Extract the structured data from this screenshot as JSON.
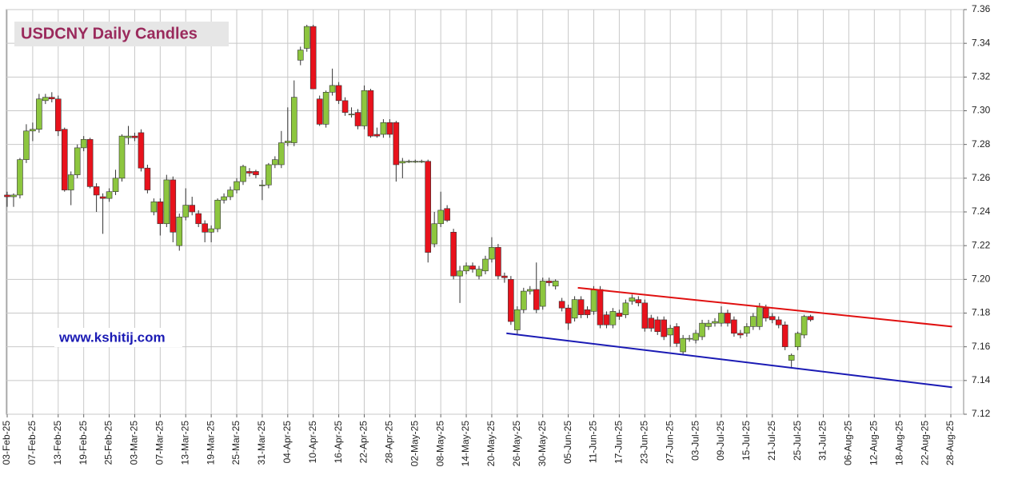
{
  "chart_data": {
    "type": "candlestick",
    "title": "USDCNY Daily Candles",
    "annotation": "www.kshitij.com",
    "categories": [
      "03-Feb-25",
      null,
      null,
      null,
      "07-Feb-25",
      null,
      null,
      null,
      "13-Feb-25",
      null,
      null,
      null,
      "19-Feb-25",
      null,
      null,
      null,
      "25-Feb-25",
      null,
      null,
      null,
      "03-Mar-25",
      null,
      null,
      null,
      "07-Mar-25",
      null,
      null,
      null,
      "13-Mar-25",
      null,
      null,
      null,
      "19-Mar-25",
      null,
      null,
      null,
      "25-Mar-25",
      null,
      null,
      null,
      "31-Mar-25",
      null,
      null,
      null,
      "04-Apr-25",
      null,
      null,
      null,
      "10-Apr-25",
      null,
      null,
      null,
      "16-Apr-25",
      null,
      null,
      null,
      "22-Apr-25",
      null,
      null,
      null,
      "28-Apr-25",
      null,
      null,
      null,
      "02-May-25",
      null,
      null,
      null,
      "08-May-25",
      null,
      null,
      null,
      "14-May-25",
      null,
      null,
      null,
      "20-May-25",
      null,
      null,
      null,
      "26-May-25",
      null,
      null,
      null,
      "30-May-25",
      null,
      null,
      null,
      "05-Jun-25",
      null,
      null,
      null,
      "11-Jun-25",
      null,
      null,
      null,
      "17-Jun-25",
      null,
      null,
      null,
      "23-Jun-25",
      null,
      null,
      null,
      "27-Jun-25",
      null,
      null,
      null,
      "03-Jul-25",
      null,
      null,
      null,
      "09-Jul-25",
      null,
      null,
      null,
      "15-Jul-25",
      null,
      null,
      null,
      "21-Jul-25",
      null,
      null,
      null,
      "25-Jul-25",
      null,
      null,
      null,
      "31-Jul-25",
      null,
      null,
      null,
      "06-Aug-25",
      null,
      null,
      null,
      "12-Aug-25",
      null,
      null,
      null,
      "18-Aug-25",
      null,
      null,
      null,
      "22-Aug-25",
      null,
      null,
      null,
      "28-Aug-25"
    ],
    "open": [
      7.25,
      7.249,
      7.25,
      7.271,
      7.288,
      7.289,
      7.306,
      7.308,
      7.307,
      7.289,
      7.253,
      7.262,
      7.278,
      7.283,
      7.255,
      7.249,
      7.248,
      7.252,
      7.26,
      7.284,
      7.285,
      7.287,
      7.266,
      7.24,
      7.246,
      7.233,
      7.259,
      7.22,
      7.237,
      7.244,
      7.239,
      7.233,
      7.228,
      7.23,
      7.247,
      7.249,
      7.253,
      7.258,
      7.264,
      7.264,
      7.256,
      7.256,
      7.268,
      7.268,
      7.281,
      7.281,
      7.33,
      7.337,
      7.35,
      7.307,
      7.292,
      7.311,
      7.315,
      7.306,
      7.298,
      7.299,
      7.291,
      7.312,
      7.286,
      7.286,
      7.293,
      7.293,
      7.269,
      7.27,
      7.27,
      7.27,
      7.27,
      7.221,
      7.233,
      7.242,
      7.228,
      7.202,
      7.205,
      7.208,
      7.202,
      7.205,
      7.212,
      7.219,
      7.202,
      7.2,
      7.17,
      7.182,
      7.193,
      7.194,
      7.184,
      7.199,
      7.196,
      7.187,
      7.183,
      7.177,
      7.188,
      7.182,
      7.181,
      7.194,
      7.179,
      7.173,
      7.18,
      7.179,
      7.187,
      7.188,
      7.186,
      7.177,
      7.176,
      7.176,
      7.167,
      7.172,
      7.157,
      7.165,
      7.164,
      7.166,
      7.172,
      7.174,
      7.174,
      7.18,
      7.176,
      7.168,
      7.168,
      7.172,
      7.172,
      7.183,
      7.178,
      7.176,
      7.173,
      7.152,
      7.16,
      7.167,
      7.178,
      null,
      null,
      null,
      null,
      null,
      null,
      null,
      null,
      null,
      null,
      null,
      null,
      null,
      null,
      null,
      null,
      null,
      null,
      null,
      null,
      null,
      null
    ],
    "high": [
      7.252,
      7.251,
      7.272,
      7.292,
      7.293,
      7.31,
      7.31,
      7.311,
      7.309,
      7.29,
      7.264,
      7.28,
      7.285,
      7.284,
      7.257,
      7.251,
      7.254,
      7.265,
      7.286,
      7.291,
      7.287,
      7.289,
      7.268,
      7.248,
      7.248,
      7.262,
      7.261,
      7.239,
      7.254,
      7.249,
      7.241,
      7.235,
      7.232,
      7.248,
      7.251,
      7.255,
      7.26,
      7.268,
      7.266,
      7.265,
      7.259,
      7.269,
      7.273,
      7.288,
      7.302,
      7.318,
      7.338,
      7.351,
      7.351,
      7.309,
      7.312,
      7.325,
      7.317,
      7.308,
      7.302,
      7.301,
      7.315,
      7.313,
      7.29,
      7.295,
      7.295,
      7.294,
      7.272,
      7.271,
      7.271,
      7.271,
      7.271,
      7.24,
      7.252,
      7.244,
      7.23,
      7.208,
      7.21,
      7.21,
      7.208,
      7.214,
      7.225,
      7.221,
      7.204,
      7.202,
      7.184,
      7.195,
      7.196,
      7.21,
      7.201,
      7.201,
      7.2,
      7.189,
      7.185,
      7.19,
      7.19,
      7.184,
      7.196,
      7.196,
      7.181,
      7.183,
      7.182,
      7.188,
      7.191,
      7.19,
      7.188,
      7.179,
      7.178,
      7.178,
      7.173,
      7.174,
      7.167,
      7.167,
      7.17,
      7.176,
      7.176,
      7.177,
      7.184,
      7.182,
      7.178,
      7.17,
      7.174,
      7.18,
      7.186,
      7.185,
      7.18,
      7.178,
      7.175,
      7.156,
      7.169,
      7.179,
      7.179,
      null,
      null,
      null,
      null,
      null,
      null,
      null,
      null,
      null,
      null,
      null,
      null,
      null,
      null,
      null,
      null,
      null,
      null,
      null,
      null,
      null,
      null
    ],
    "low": [
      7.243,
      7.243,
      7.248,
      7.269,
      7.282,
      7.287,
      7.304,
      7.305,
      7.285,
      7.252,
      7.244,
      7.26,
      7.276,
      7.254,
      7.24,
      7.227,
      7.246,
      7.25,
      7.258,
      7.28,
      7.282,
      7.264,
      7.251,
      7.238,
      7.226,
      7.231,
      7.222,
      7.217,
      7.235,
      7.238,
      7.231,
      7.222,
      7.222,
      7.228,
      7.245,
      7.247,
      7.251,
      7.256,
      7.261,
      7.26,
      7.247,
      7.254,
      7.266,
      7.266,
      7.279,
      7.279,
      7.327,
      7.335,
      7.313,
      7.291,
      7.29,
      7.309,
      7.304,
      7.297,
      7.296,
      7.289,
      7.289,
      7.284,
      7.284,
      7.284,
      7.284,
      7.258,
      7.26,
      7.269,
      7.269,
      7.269,
      7.21,
      7.219,
      7.231,
      7.234,
      7.2,
      7.186,
      7.203,
      7.204,
      7.2,
      7.203,
      7.21,
      7.2,
      7.198,
      7.173,
      7.167,
      7.18,
      7.191,
      7.18,
      7.182,
      7.196,
      7.194,
      7.181,
      7.17,
      7.175,
      7.177,
      7.177,
      7.179,
      7.171,
      7.171,
      7.171,
      7.176,
      7.177,
      7.185,
      7.184,
      7.169,
      7.169,
      7.167,
      7.164,
      7.16,
      7.16,
      7.155,
      7.163,
      7.162,
      7.164,
      7.17,
      7.172,
      7.172,
      7.172,
      7.166,
      7.165,
      7.166,
      7.17,
      7.17,
      7.175,
      7.174,
      7.171,
      7.158,
      7.148,
      7.158,
      7.165,
      7.175,
      null,
      null,
      null,
      null,
      null,
      null,
      null,
      null,
      null,
      null,
      null,
      null,
      null,
      null,
      null,
      null,
      null,
      null,
      null,
      null,
      null,
      null
    ],
    "close": [
      7.249,
      7.25,
      7.271,
      7.288,
      7.289,
      7.307,
      7.308,
      7.307,
      7.288,
      7.253,
      7.262,
      7.278,
      7.283,
      7.255,
      7.25,
      7.248,
      7.252,
      7.26,
      7.285,
      7.285,
      7.284,
      7.266,
      7.253,
      7.246,
      7.233,
      7.259,
      7.228,
      7.237,
      7.244,
      7.24,
      7.233,
      7.228,
      7.23,
      7.247,
      7.249,
      7.253,
      7.258,
      7.267,
      7.263,
      7.262,
      7.256,
      7.268,
      7.271,
      7.281,
      7.282,
      7.308,
      7.336,
      7.35,
      7.313,
      7.292,
      7.311,
      7.315,
      7.306,
      7.299,
      7.298,
      7.291,
      7.312,
      7.285,
      7.285,
      7.293,
      7.286,
      7.268,
      7.27,
      7.27,
      7.27,
      7.27,
      7.216,
      7.233,
      7.241,
      7.235,
      7.202,
      7.205,
      7.208,
      7.206,
      7.206,
      7.212,
      7.219,
      7.202,
      7.201,
      7.175,
      7.182,
      7.193,
      7.194,
      7.182,
      7.199,
      7.198,
      7.199,
      7.183,
      7.174,
      7.188,
      7.179,
      7.179,
      7.194,
      7.173,
      7.173,
      7.181,
      7.178,
      7.186,
      7.189,
      7.186,
      7.171,
      7.171,
      7.169,
      7.166,
      7.171,
      7.162,
      7.165,
      7.165,
      7.168,
      7.174,
      7.174,
      7.175,
      7.18,
      7.174,
      7.168,
      7.167,
      7.172,
      7.178,
      7.184,
      7.177,
      7.176,
      7.173,
      7.16,
      7.155,
      7.168,
      7.178,
      7.176,
      null,
      null,
      null,
      null,
      null,
      null,
      null,
      null,
      null,
      null,
      null,
      null,
      null,
      null,
      null,
      null,
      null,
      null,
      null,
      null,
      null,
      null
    ],
    "up_color": "#8dc63f",
    "down_color": "#e8121c",
    "trendlines": [
      {
        "color": "#e01010",
        "x": [
          89.5,
          148.2
        ],
        "y": [
          7.195,
          7.172
        ]
      },
      {
        "color": "#1a1ab4",
        "x": [
          78.3,
          148.2
        ],
        "y": [
          7.168,
          7.136
        ]
      }
    ],
    "ylim": [
      7.12,
      7.36
    ],
    "yticks": [
      7.12,
      7.14,
      7.16,
      7.18,
      {
        "value": 7.2,
        "label": "7.20"
      },
      7.22,
      7.24,
      7.26,
      7.28,
      {
        "value": 7.3,
        "label": "7.30"
      },
      7.32,
      7.34,
      7.36
    ],
    "grid": true
  }
}
